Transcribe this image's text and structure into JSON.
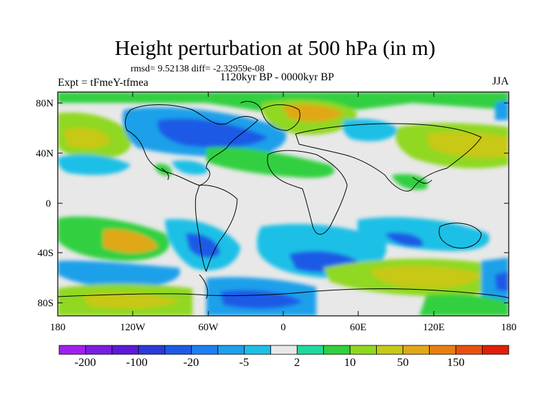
{
  "title": "Height perturbation at 500 hPa (in m)",
  "stats": "rmsd= 9.52138 diff= -2.32959e-08",
  "period": "1120kyr BP - 0000kyr BP",
  "experiment": "Expt = tFmeY-tfmea",
  "season": "JJA",
  "axes": {
    "x_ticks": [
      "180",
      "120W",
      "60W",
      "0",
      "60E",
      "120E",
      "180"
    ],
    "y_ticks": [
      "80N",
      "40N",
      "0",
      "40S",
      "80S"
    ]
  },
  "colorbar": {
    "colors": [
      "#a020f0",
      "#7a1ee0",
      "#5a1ad8",
      "#2c3ad8",
      "#1e5ae6",
      "#1e80f0",
      "#1ea0ea",
      "#1ec0e6",
      "#e8e8e8",
      "#20d8a0",
      "#30d040",
      "#90d820",
      "#c8c818",
      "#e0a818",
      "#e88010",
      "#e85010",
      "#e01e0a"
    ],
    "labels": [
      "-200",
      "-100",
      "-20",
      "-5",
      "2",
      "10",
      "50",
      "150"
    ]
  }
}
